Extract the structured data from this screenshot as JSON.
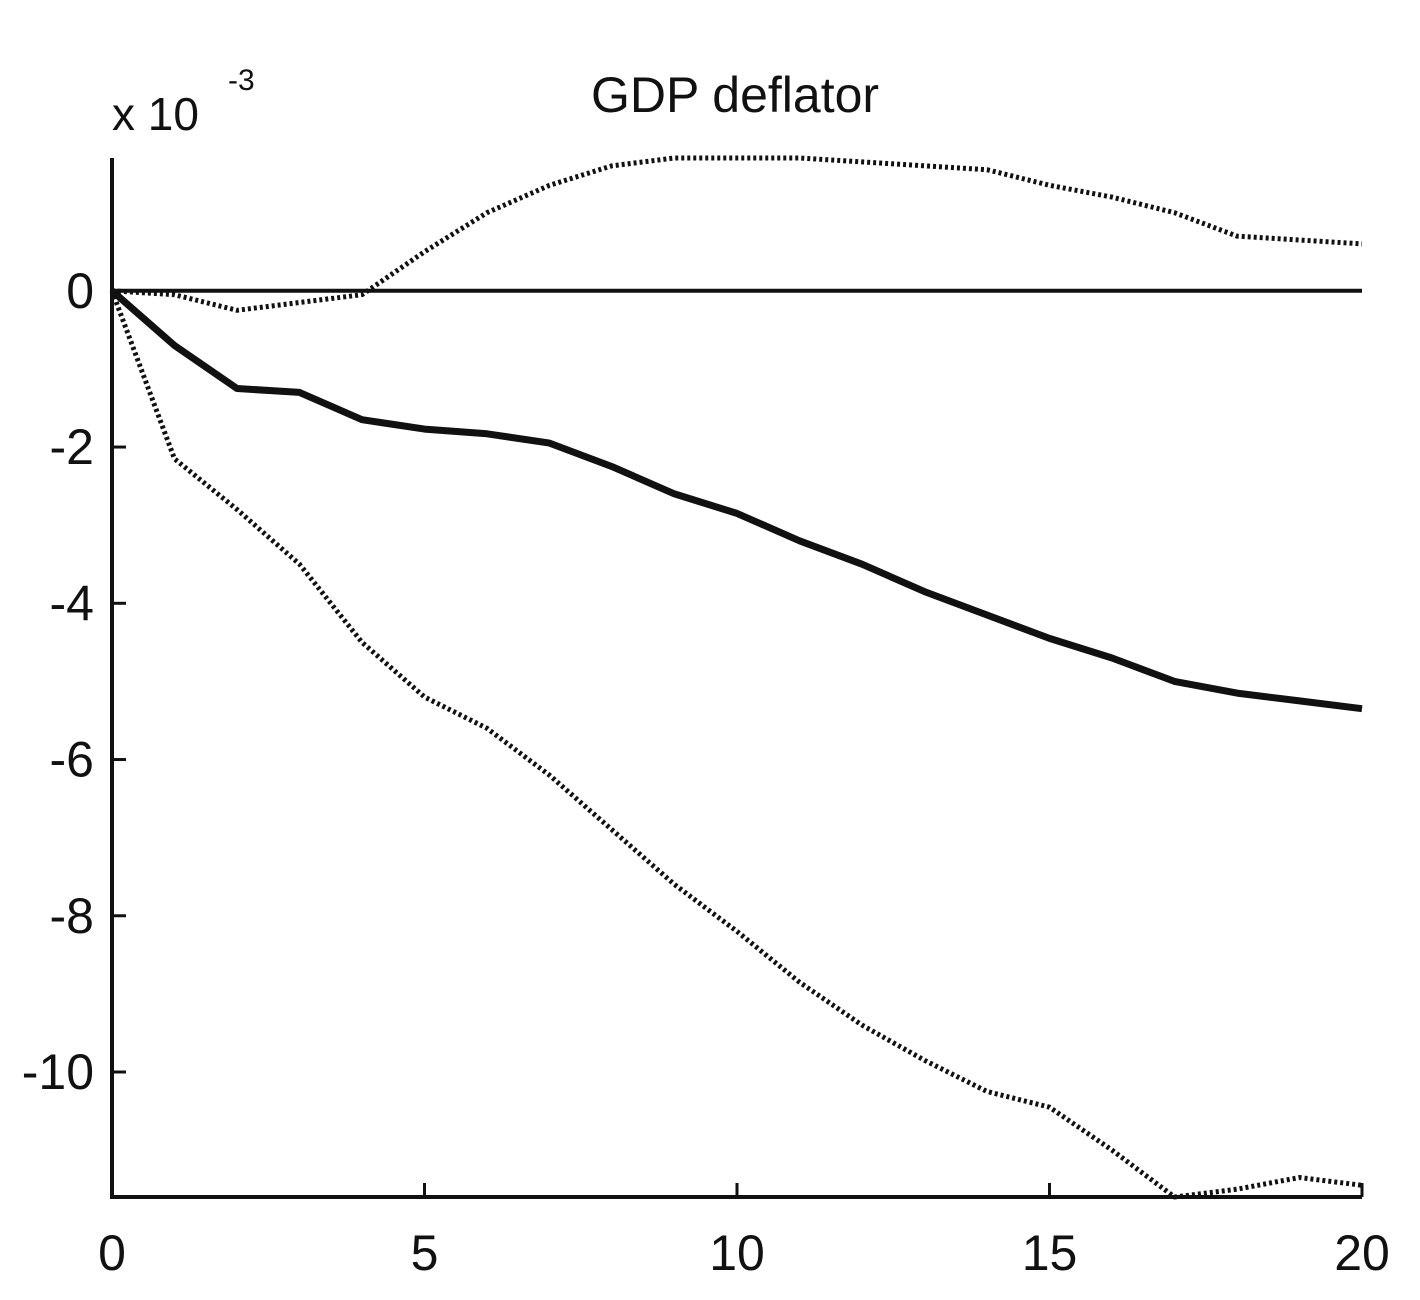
{
  "chart_data": {
    "type": "line",
    "title": "GDP deflator",
    "y_multiplier": {
      "base": "x 10",
      "exponent": "-3"
    },
    "xlim": [
      0,
      20
    ],
    "ylim": [
      -11.6,
      1.7
    ],
    "xticks": [
      0,
      5,
      10,
      15,
      20
    ],
    "xtick_labels": [
      "0",
      "5",
      "10",
      "15",
      "20"
    ],
    "yticks": [
      0,
      -2,
      -4,
      -6,
      -8,
      -10
    ],
    "ytick_labels": [
      "0",
      "-2",
      "-4",
      "-6",
      "-8",
      "-10"
    ],
    "grid": false,
    "x": [
      0,
      1,
      2,
      3,
      4,
      5,
      6,
      7,
      8,
      9,
      10,
      11,
      12,
      13,
      14,
      15,
      16,
      17,
      18,
      19,
      20
    ],
    "series": [
      {
        "role": "zero-line",
        "style": "solid",
        "values": [
          0,
          0,
          0,
          0,
          0,
          0,
          0,
          0,
          0,
          0,
          0,
          0,
          0,
          0,
          0,
          0,
          0,
          0,
          0,
          0,
          0
        ]
      },
      {
        "role": "point-estimate",
        "style": "solid-thick",
        "values": [
          0,
          -0.7,
          -1.25,
          -1.3,
          -1.65,
          -1.77,
          -1.83,
          -1.95,
          -2.25,
          -2.6,
          -2.85,
          -3.2,
          -3.5,
          -3.85,
          -4.15,
          -4.45,
          -4.7,
          -5.0,
          -5.15,
          -5.25,
          -5.35
        ]
      },
      {
        "role": "upper-band",
        "style": "dotted",
        "values": [
          0,
          -0.05,
          -0.25,
          -0.15,
          -0.05,
          0.5,
          1.0,
          1.35,
          1.6,
          1.7,
          1.7,
          1.7,
          1.65,
          1.6,
          1.55,
          1.35,
          1.2,
          1.0,
          0.7,
          0.65,
          0.6
        ]
      },
      {
        "role": "lower-band",
        "style": "dotted",
        "values": [
          0,
          -2.15,
          -2.8,
          -3.5,
          -4.5,
          -5.2,
          -5.6,
          -6.2,
          -6.9,
          -7.6,
          -8.2,
          -8.85,
          -9.4,
          -9.85,
          -10.25,
          -10.45,
          -11.0,
          -11.6,
          -11.5,
          -11.35,
          -11.45
        ]
      }
    ],
    "colors": {
      "axis": "#111111",
      "lines": "#111111",
      "background": "#ffffff"
    }
  }
}
